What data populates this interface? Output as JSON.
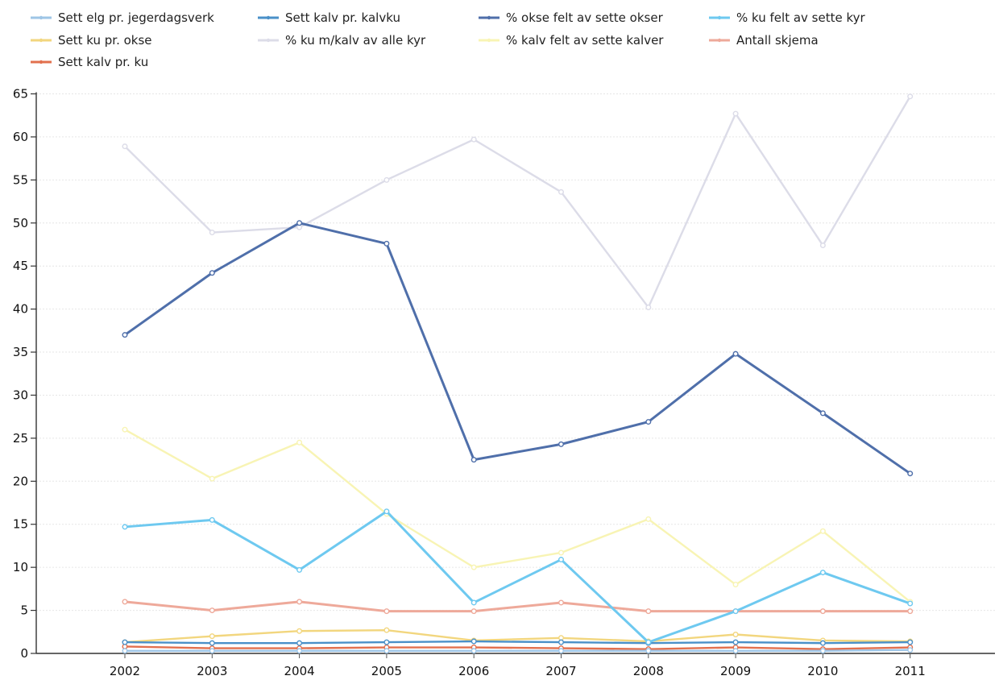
{
  "chart_data": {
    "type": "line",
    "categories": [
      "2002",
      "2003",
      "2004",
      "2005",
      "2006",
      "2007",
      "2008",
      "2009",
      "2010",
      "2011"
    ],
    "ylim": [
      0,
      65
    ],
    "yticks": [
      0,
      5,
      10,
      15,
      20,
      25,
      30,
      35,
      40,
      45,
      50,
      55,
      60,
      65
    ],
    "grid": true,
    "legend_position": "top",
    "series": [
      {
        "name": "Sett elg pr. jegerdagsverk",
        "color": "#9ec5e6",
        "values": [
          0.3,
          0.3,
          0.3,
          0.3,
          0.3,
          0.3,
          0.3,
          0.3,
          0.3,
          0.4
        ]
      },
      {
        "name": "Sett kalv pr. kalvku",
        "color": "#4a90c8",
        "values": [
          1.3,
          1.2,
          1.2,
          1.3,
          1.4,
          1.3,
          1.2,
          1.3,
          1.2,
          1.3
        ]
      },
      {
        "name": "% okse felt av sette okser",
        "color": "#4f6faa",
        "values": [
          37.0,
          44.2,
          50.0,
          47.6,
          22.5,
          24.3,
          26.9,
          34.8,
          27.9,
          20.9
        ]
      },
      {
        "name": "% ku felt av sette kyr",
        "color": "#6ec9f0",
        "values": [
          14.7,
          15.5,
          9.7,
          16.5,
          5.9,
          10.9,
          1.3,
          4.9,
          9.4,
          5.8
        ]
      },
      {
        "name": "Sett ku pr. okse",
        "color": "#f2d67e",
        "values": [
          1.3,
          2.0,
          2.6,
          2.7,
          1.5,
          1.8,
          1.4,
          2.2,
          1.5,
          1.4
        ]
      },
      {
        "name": "% ku m/kalv av alle kyr",
        "color": "#dcdce8",
        "values": [
          58.9,
          48.9,
          49.5,
          55.0,
          59.7,
          53.6,
          40.2,
          62.7,
          47.4,
          64.7
        ]
      },
      {
        "name": "% kalv felt av sette kalver",
        "color": "#f8f4b4",
        "values": [
          26.0,
          20.3,
          24.5,
          16.2,
          10.0,
          11.7,
          15.6,
          8.0,
          14.2,
          6.0
        ]
      },
      {
        "name": "Antall skjema",
        "color": "#eea99a",
        "values": [
          6.0,
          5.0,
          6.0,
          4.9,
          4.9,
          5.9,
          4.9,
          4.9,
          4.9,
          4.9
        ]
      },
      {
        "name": "Sett kalv pr. ku",
        "color": "#e2704e",
        "values": [
          0.8,
          0.6,
          0.6,
          0.7,
          0.7,
          0.6,
          0.5,
          0.7,
          0.5,
          0.7
        ]
      }
    ]
  }
}
